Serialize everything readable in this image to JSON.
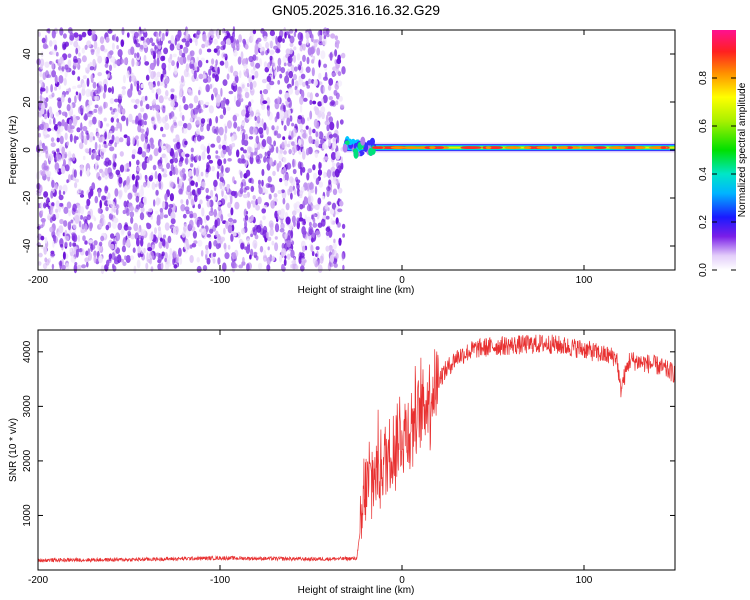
{
  "figure": {
    "title": "GN05.2025.316.16.32.G29"
  },
  "chart_data": [
    {
      "type": "heatmap",
      "name": "spectrogram",
      "xlabel": "Height of straight line (km)",
      "ylabel": "Frequency (Hz)",
      "xlim": [
        -200,
        150
      ],
      "ylim": [
        -50,
        50
      ],
      "xticks": [
        -200,
        -100,
        0,
        100
      ],
      "yticks": [
        -40,
        -20,
        0,
        20,
        40
      ],
      "colorbar": {
        "label": "Normalized spectral amplitude",
        "range": [
          0,
          1
        ],
        "ticks": [
          0.0,
          0.2,
          0.4,
          0.6,
          0.8
        ],
        "tick_labels": [
          "0.0",
          "0.2",
          "0.4",
          "0.6",
          "0.8"
        ]
      },
      "regions": [
        {
          "x_range": [
            -200,
            -32
          ],
          "description_type": "noise",
          "amplitude_range": [
            0.05,
            0.3
          ]
        },
        {
          "x_range": [
            -32,
            150
          ],
          "description_type": "signal",
          "frequency_hz": 1,
          "peak_amplitude": 0.95
        }
      ],
      "grid": false
    },
    {
      "type": "line",
      "name": "snr",
      "xlabel": "Height of straight line (km)",
      "ylabel": "SNR (10 * v/v)",
      "xlim": [
        -200,
        150
      ],
      "ylim": [
        0,
        4400
      ],
      "xticks": [
        -200,
        -100,
        0,
        100
      ],
      "yticks": [
        1000,
        2000,
        3000,
        4000
      ],
      "color": "#e83030",
      "profile": {
        "x": [
          -200,
          -150,
          -100,
          -50,
          -25,
          -22,
          -20,
          -10,
          0,
          10,
          20,
          30,
          40,
          50,
          60,
          80,
          100,
          110,
          118,
          120,
          125,
          140,
          150
        ],
        "y": [
          180,
          190,
          220,
          200,
          210,
          900,
          1500,
          2000,
          2500,
          2900,
          3500,
          3900,
          4050,
          4100,
          4120,
          4150,
          4050,
          3950,
          3900,
          3300,
          3850,
          3750,
          3600
        ]
      },
      "grid": false
    }
  ]
}
